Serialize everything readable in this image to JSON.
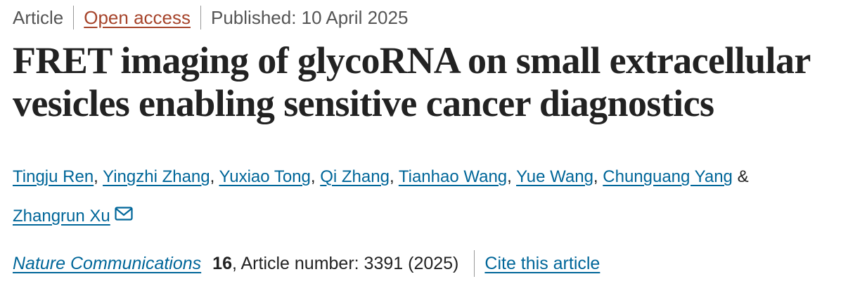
{
  "header": {
    "article_type": "Article",
    "access": "Open access",
    "published": "Published: 10 April 2025"
  },
  "title": "FRET imaging of glycoRNA on small extracellular vesicles enabling sensitive cancer diagnostics",
  "authors": {
    "names": [
      "Tingju Ren",
      "Yingzhi Zhang",
      "Yuxiao Tong",
      "Qi Zhang",
      "Tianhao Wang",
      "Yue Wang",
      "Chunguang Yang",
      "Zhangrun Xu"
    ],
    "separator": ",",
    "last_separator": "&"
  },
  "citation": {
    "journal": "Nature Communications",
    "volume": "16",
    "details": ", Article number: 3391 (2025)",
    "cite_link": "Cite this article"
  }
}
